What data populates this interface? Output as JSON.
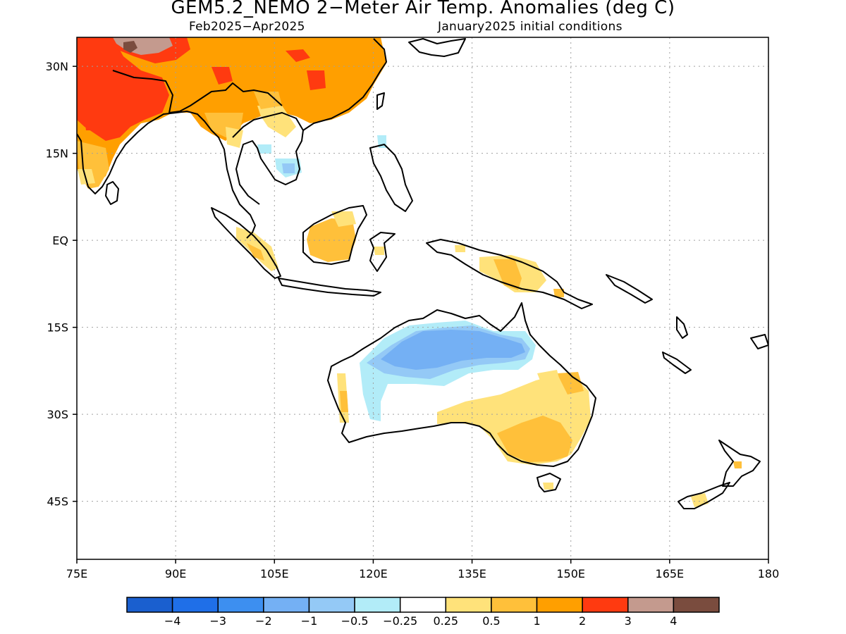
{
  "title": "GEM5.2_NEMO 2−Meter Air Temp. Anomalies (deg C)",
  "subtitle_left": "Feb2025−Apr2025",
  "subtitle_right": "January2025 initial conditions",
  "map": {
    "lon_range": [
      75,
      180
    ],
    "lat_range": [
      -55,
      35
    ],
    "lat_ticks": [
      {
        "value": 30,
        "label": "30N"
      },
      {
        "value": 15,
        "label": "15N"
      },
      {
        "value": 0,
        "label": "EQ"
      },
      {
        "value": -15,
        "label": "15S"
      },
      {
        "value": -30,
        "label": "30S"
      },
      {
        "value": -45,
        "label": "45S"
      }
    ],
    "lon_ticks": [
      {
        "value": 75,
        "label": "75E"
      },
      {
        "value": 90,
        "label": "90E"
      },
      {
        "value": 105,
        "label": "105E"
      },
      {
        "value": 120,
        "label": "120E"
      },
      {
        "value": 135,
        "label": "135E"
      },
      {
        "value": 150,
        "label": "150E"
      },
      {
        "value": 165,
        "label": "165E"
      },
      {
        "value": 180,
        "label": "180"
      }
    ],
    "grid": true
  },
  "legend": {
    "colors": [
      "#1a5fcf",
      "#1f6fe8",
      "#3d8ff0",
      "#74b0f4",
      "#94c9f6",
      "#b2ecf8",
      "#ffffff",
      "#ffe27a",
      "#ffc03a",
      "#ff9f00",
      "#ff3a10",
      "#c49a8e",
      "#7a4c3e"
    ],
    "labels": [
      "−4",
      "−3",
      "−2",
      "−1",
      "−0.5",
      "−0.25",
      "0.25",
      "0.5",
      "1",
      "2",
      "3",
      "4"
    ]
  }
}
